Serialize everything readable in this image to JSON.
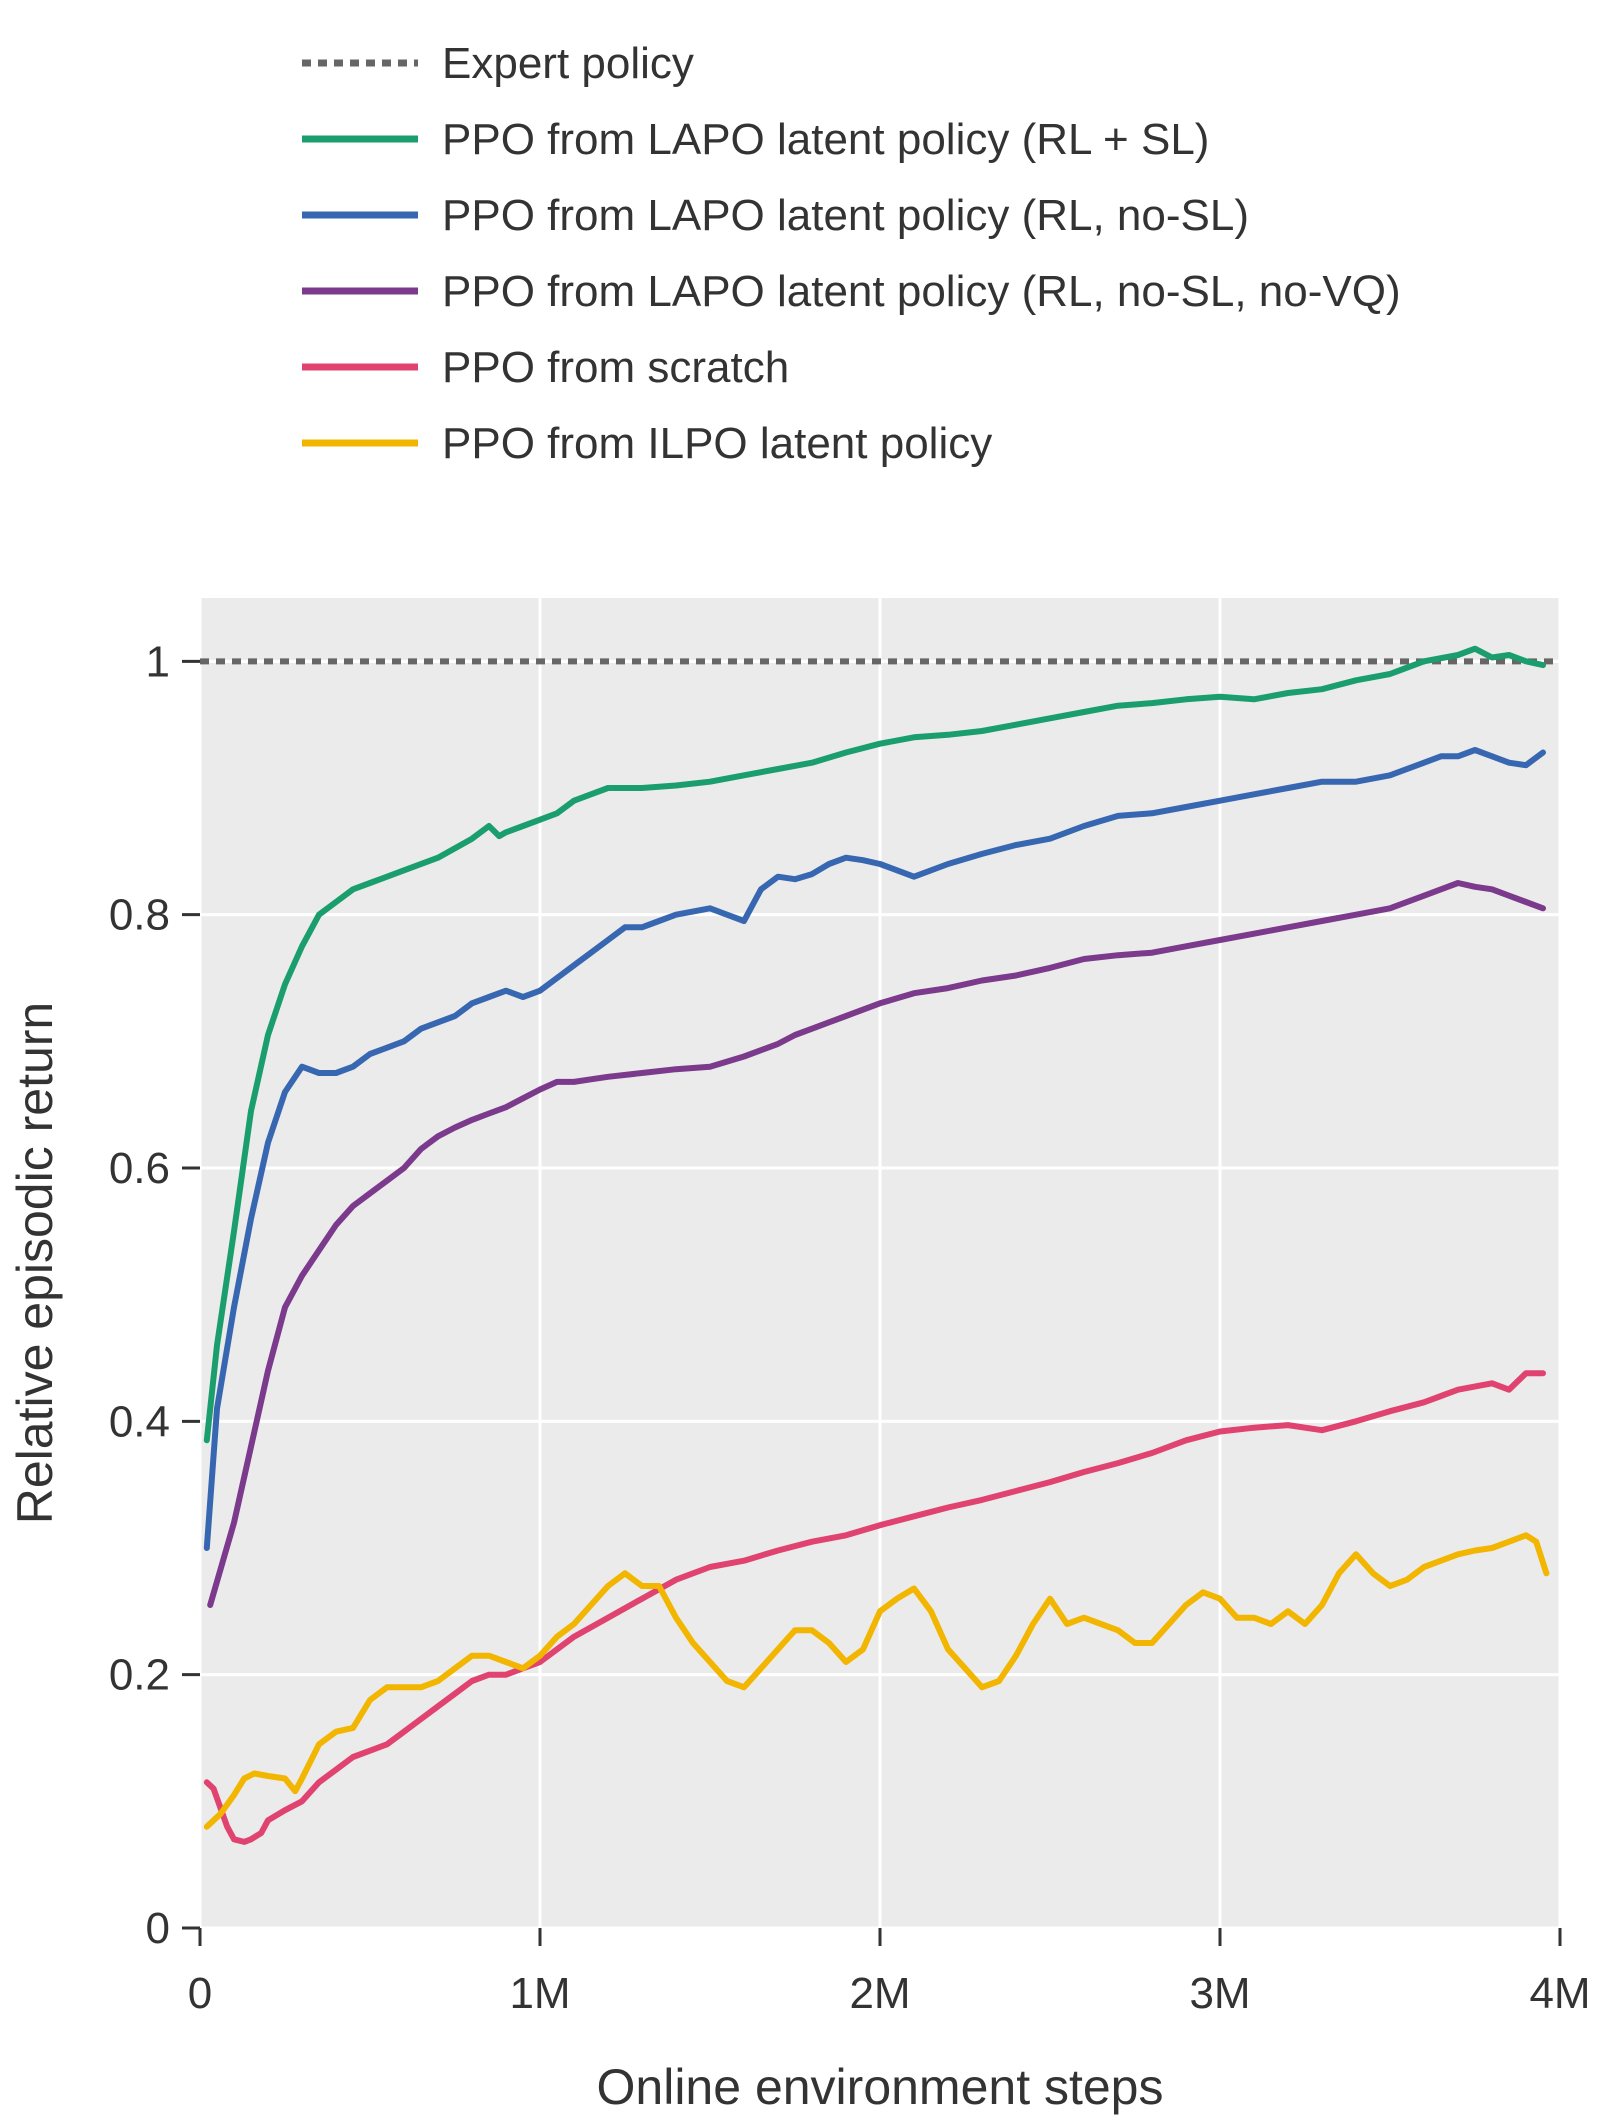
{
  "chart_data": {
    "type": "line",
    "xlabel": "Online environment steps",
    "ylabel": "Relative episodic return",
    "xlim": [
      0,
      4000000
    ],
    "ylim": [
      0,
      1.05
    ],
    "x_ticks": [
      0,
      1000000,
      2000000,
      3000000,
      4000000
    ],
    "x_tick_labels": [
      "0",
      "1M",
      "2M",
      "3M",
      "4M"
    ],
    "y_ticks": [
      0,
      0.2,
      0.4,
      0.6,
      0.8,
      1
    ],
    "y_tick_labels": [
      "0",
      "0.2",
      "0.4",
      "0.6",
      "0.8",
      "1"
    ],
    "grid": true,
    "legend_position": "top",
    "reference_line": {
      "name": "Expert policy",
      "y": 1.0,
      "color": "#666666",
      "style": "dotted"
    },
    "series": [
      {
        "name": "PPO from LAPO latent policy (RL + SL)",
        "color": "#1a9e6e",
        "x": [
          20000,
          50000,
          100000,
          150000,
          200000,
          250000,
          300000,
          350000,
          400000,
          450000,
          500000,
          600000,
          700000,
          800000,
          850000,
          880000,
          900000,
          950000,
          1000000,
          1050000,
          1100000,
          1150000,
          1200000,
          1300000,
          1400000,
          1500000,
          1600000,
          1700000,
          1800000,
          1900000,
          2000000,
          2100000,
          2200000,
          2300000,
          2400000,
          2500000,
          2600000,
          2700000,
          2800000,
          2900000,
          3000000,
          3100000,
          3200000,
          3300000,
          3400000,
          3500000,
          3600000,
          3700000,
          3750000,
          3800000,
          3850000,
          3900000,
          3950000
        ],
        "y": [
          0.385,
          0.46,
          0.55,
          0.645,
          0.705,
          0.745,
          0.775,
          0.8,
          0.81,
          0.82,
          0.825,
          0.835,
          0.845,
          0.86,
          0.87,
          0.862,
          0.865,
          0.87,
          0.875,
          0.88,
          0.89,
          0.895,
          0.9,
          0.9,
          0.902,
          0.905,
          0.91,
          0.915,
          0.92,
          0.928,
          0.935,
          0.94,
          0.942,
          0.945,
          0.95,
          0.955,
          0.96,
          0.965,
          0.967,
          0.97,
          0.972,
          0.97,
          0.975,
          0.978,
          0.985,
          0.99,
          1.0,
          1.005,
          1.01,
          1.003,
          1.005,
          1.0,
          0.997
        ]
      },
      {
        "name": "PPO from LAPO latent policy (RL, no-SL)",
        "color": "#3867b1",
        "x": [
          20000,
          50000,
          100000,
          150000,
          200000,
          250000,
          300000,
          350000,
          400000,
          450000,
          500000,
          550000,
          600000,
          650000,
          700000,
          750000,
          800000,
          850000,
          900000,
          950000,
          1000000,
          1050000,
          1100000,
          1150000,
          1200000,
          1250000,
          1300000,
          1350000,
          1400000,
          1500000,
          1550000,
          1600000,
          1650000,
          1700000,
          1750000,
          1800000,
          1850000,
          1900000,
          1950000,
          2000000,
          2050000,
          2100000,
          2200000,
          2300000,
          2400000,
          2500000,
          2600000,
          2700000,
          2800000,
          2900000,
          3000000,
          3100000,
          3200000,
          3300000,
          3400000,
          3500000,
          3600000,
          3650000,
          3700000,
          3750000,
          3800000,
          3850000,
          3900000,
          3950000
        ],
        "y": [
          0.3,
          0.41,
          0.49,
          0.56,
          0.62,
          0.66,
          0.68,
          0.675,
          0.675,
          0.68,
          0.69,
          0.695,
          0.7,
          0.71,
          0.715,
          0.72,
          0.73,
          0.735,
          0.74,
          0.735,
          0.74,
          0.75,
          0.76,
          0.77,
          0.78,
          0.79,
          0.79,
          0.795,
          0.8,
          0.805,
          0.8,
          0.795,
          0.82,
          0.83,
          0.828,
          0.832,
          0.84,
          0.845,
          0.843,
          0.84,
          0.835,
          0.83,
          0.84,
          0.848,
          0.855,
          0.86,
          0.87,
          0.878,
          0.88,
          0.885,
          0.89,
          0.895,
          0.9,
          0.905,
          0.905,
          0.91,
          0.92,
          0.925,
          0.925,
          0.93,
          0.925,
          0.92,
          0.918,
          0.928
        ]
      },
      {
        "name": "PPO from LAPO latent policy (RL, no-SL, no-VQ)",
        "color": "#7b3a8c",
        "x": [
          30000,
          100000,
          150000,
          200000,
          250000,
          300000,
          350000,
          400000,
          450000,
          500000,
          550000,
          600000,
          650000,
          700000,
          750000,
          800000,
          850000,
          900000,
          950000,
          1000000,
          1050000,
          1100000,
          1150000,
          1200000,
          1300000,
          1400000,
          1500000,
          1600000,
          1700000,
          1750000,
          1800000,
          1850000,
          1900000,
          2000000,
          2100000,
          2200000,
          2300000,
          2400000,
          2500000,
          2600000,
          2700000,
          2800000,
          2900000,
          3000000,
          3100000,
          3200000,
          3300000,
          3400000,
          3500000,
          3600000,
          3650000,
          3700000,
          3750000,
          3800000,
          3850000,
          3900000,
          3950000
        ],
        "y": [
          0.255,
          0.32,
          0.38,
          0.44,
          0.49,
          0.515,
          0.535,
          0.555,
          0.57,
          0.58,
          0.59,
          0.6,
          0.615,
          0.625,
          0.632,
          0.638,
          0.643,
          0.648,
          0.655,
          0.662,
          0.668,
          0.668,
          0.67,
          0.672,
          0.675,
          0.678,
          0.68,
          0.688,
          0.698,
          0.705,
          0.71,
          0.715,
          0.72,
          0.73,
          0.738,
          0.742,
          0.748,
          0.752,
          0.758,
          0.765,
          0.768,
          0.77,
          0.775,
          0.78,
          0.785,
          0.79,
          0.795,
          0.8,
          0.805,
          0.815,
          0.82,
          0.825,
          0.822,
          0.82,
          0.815,
          0.81,
          0.805
        ]
      },
      {
        "name": "PPO from scratch",
        "color": "#e0436f",
        "x": [
          20000,
          40000,
          80000,
          100000,
          130000,
          150000,
          180000,
          200000,
          250000,
          300000,
          350000,
          400000,
          450000,
          500000,
          550000,
          600000,
          650000,
          700000,
          750000,
          800000,
          850000,
          900000,
          950000,
          1000000,
          1100000,
          1200000,
          1300000,
          1400000,
          1500000,
          1600000,
          1700000,
          1800000,
          1900000,
          2000000,
          2100000,
          2200000,
          2300000,
          2400000,
          2500000,
          2600000,
          2700000,
          2800000,
          2900000,
          3000000,
          3100000,
          3200000,
          3300000,
          3400000,
          3500000,
          3600000,
          3650000,
          3700000,
          3800000,
          3850000,
          3900000,
          3950000
        ],
        "y": [
          0.115,
          0.11,
          0.08,
          0.07,
          0.068,
          0.07,
          0.075,
          0.085,
          0.093,
          0.1,
          0.115,
          0.125,
          0.135,
          0.14,
          0.145,
          0.155,
          0.165,
          0.175,
          0.185,
          0.195,
          0.2,
          0.2,
          0.205,
          0.21,
          0.23,
          0.245,
          0.26,
          0.275,
          0.285,
          0.29,
          0.298,
          0.305,
          0.31,
          0.318,
          0.325,
          0.332,
          0.338,
          0.345,
          0.352,
          0.36,
          0.367,
          0.375,
          0.385,
          0.392,
          0.395,
          0.397,
          0.393,
          0.4,
          0.408,
          0.415,
          0.42,
          0.425,
          0.43,
          0.425,
          0.438,
          0.438
        ]
      },
      {
        "name": "PPO from ILPO latent policy",
        "color": "#f2b500",
        "x": [
          20000,
          60000,
          100000,
          130000,
          160000,
          200000,
          250000,
          280000,
          300000,
          350000,
          400000,
          450000,
          500000,
          550000,
          600000,
          650000,
          700000,
          750000,
          800000,
          850000,
          900000,
          950000,
          1000000,
          1050000,
          1100000,
          1150000,
          1200000,
          1250000,
          1300000,
          1350000,
          1400000,
          1450000,
          1500000,
          1550000,
          1600000,
          1650000,
          1700000,
          1750000,
          1800000,
          1850000,
          1900000,
          1950000,
          2000000,
          2050000,
          2100000,
          2150000,
          2200000,
          2250000,
          2300000,
          2350000,
          2400000,
          2450000,
          2500000,
          2550000,
          2600000,
          2650000,
          2700000,
          2750000,
          2800000,
          2850000,
          2900000,
          2950000,
          3000000,
          3050000,
          3100000,
          3150000,
          3200000,
          3250000,
          3300000,
          3350000,
          3400000,
          3450000,
          3500000,
          3550000,
          3600000,
          3650000,
          3700000,
          3750000,
          3800000,
          3850000,
          3900000,
          3930000,
          3960000
        ],
        "y": [
          0.08,
          0.09,
          0.105,
          0.118,
          0.122,
          0.12,
          0.118,
          0.108,
          0.118,
          0.145,
          0.155,
          0.158,
          0.18,
          0.19,
          0.19,
          0.19,
          0.195,
          0.205,
          0.215,
          0.215,
          0.21,
          0.205,
          0.215,
          0.23,
          0.24,
          0.255,
          0.27,
          0.28,
          0.27,
          0.27,
          0.245,
          0.225,
          0.21,
          0.195,
          0.19,
          0.205,
          0.22,
          0.235,
          0.235,
          0.225,
          0.21,
          0.22,
          0.25,
          0.26,
          0.268,
          0.25,
          0.22,
          0.205,
          0.19,
          0.195,
          0.215,
          0.24,
          0.26,
          0.24,
          0.245,
          0.24,
          0.235,
          0.225,
          0.225,
          0.24,
          0.255,
          0.265,
          0.26,
          0.245,
          0.245,
          0.24,
          0.25,
          0.24,
          0.255,
          0.28,
          0.295,
          0.28,
          0.27,
          0.275,
          0.285,
          0.29,
          0.295,
          0.298,
          0.3,
          0.305,
          0.31,
          0.305,
          0.28
        ]
      }
    ]
  }
}
